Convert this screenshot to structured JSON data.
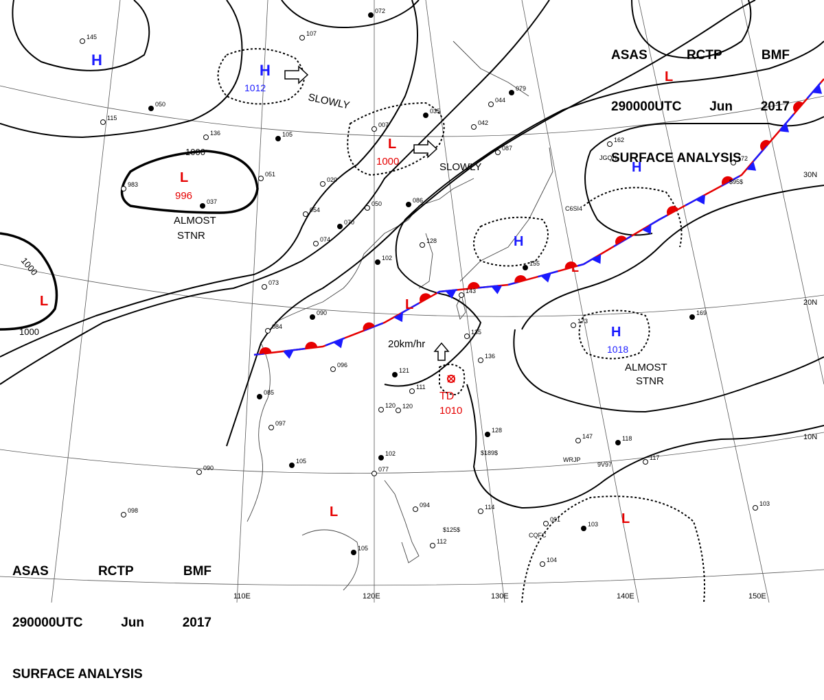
{
  "header": {
    "line1": [
      "ASAS",
      "RCTP",
      "BMF"
    ],
    "line2": [
      "290000UTC",
      "Jun",
      "2017"
    ],
    "line3": "SURFACE ANALYSIS"
  },
  "colors": {
    "high": "#1a1aff",
    "low": "#e60000",
    "front_cold": "#1a1aff",
    "front_warm": "#e60000",
    "isobar": "#000000",
    "grid": "#555555"
  },
  "latitude_labels": [
    "30N",
    "20N",
    "10N"
  ],
  "longitude_labels": [
    "110E",
    "120E",
    "130E",
    "140E",
    "150E"
  ],
  "isobar_labels": [
    "1000",
    "1000",
    "1000"
  ],
  "pressure_systems": [
    {
      "type": "H",
      "letter": "H"
    },
    {
      "type": "H",
      "letter": "H",
      "value": "1012"
    },
    {
      "type": "L",
      "letter": "L",
      "value": "996"
    },
    {
      "type": "L",
      "letter": "L",
      "value": "1000"
    },
    {
      "type": "L",
      "letter": "L"
    },
    {
      "type": "H",
      "letter": "H"
    },
    {
      "type": "H",
      "letter": "H"
    },
    {
      "type": "L",
      "letter": "L"
    },
    {
      "type": "L",
      "letter": "L"
    },
    {
      "type": "H",
      "letter": "H",
      "value": "1018"
    },
    {
      "type": "TD",
      "letter": "TD",
      "value": "1010"
    },
    {
      "type": "L",
      "letter": "L"
    },
    {
      "type": "L",
      "letter": "L"
    },
    {
      "type": "L",
      "letter": "L"
    }
  ],
  "annotations": [
    "SLOWLY",
    "SLOWLY",
    "ALMOST",
    "STNR",
    "ALMOST",
    "STNR",
    "20km/hr"
  ],
  "station_labels": [
    "072",
    "145",
    "107",
    "050",
    "115",
    "136",
    "105",
    "051",
    "020",
    "037",
    "983",
    "054",
    "070",
    "074",
    "073",
    "090",
    "084",
    "096",
    "085",
    "097",
    "090",
    "105",
    "098",
    "120",
    "102",
    "077",
    "094",
    "105",
    "112",
    "114",
    "128",
    "135",
    "136",
    "121",
    "111",
    "120",
    "035",
    "042",
    "044",
    "079",
    "087",
    "007",
    "086",
    "050",
    "128",
    "102",
    "162",
    "172",
    "169",
    "173",
    "147",
    "118",
    "117",
    "091",
    "103",
    "104",
    "103",
    "155",
    "143"
  ],
  "ship_labels": [
    "JGQH",
    "C6SI4",
    "WRJP",
    "9V97",
    "CQFC",
    "$125$",
    "$189$",
    "$95$"
  ]
}
